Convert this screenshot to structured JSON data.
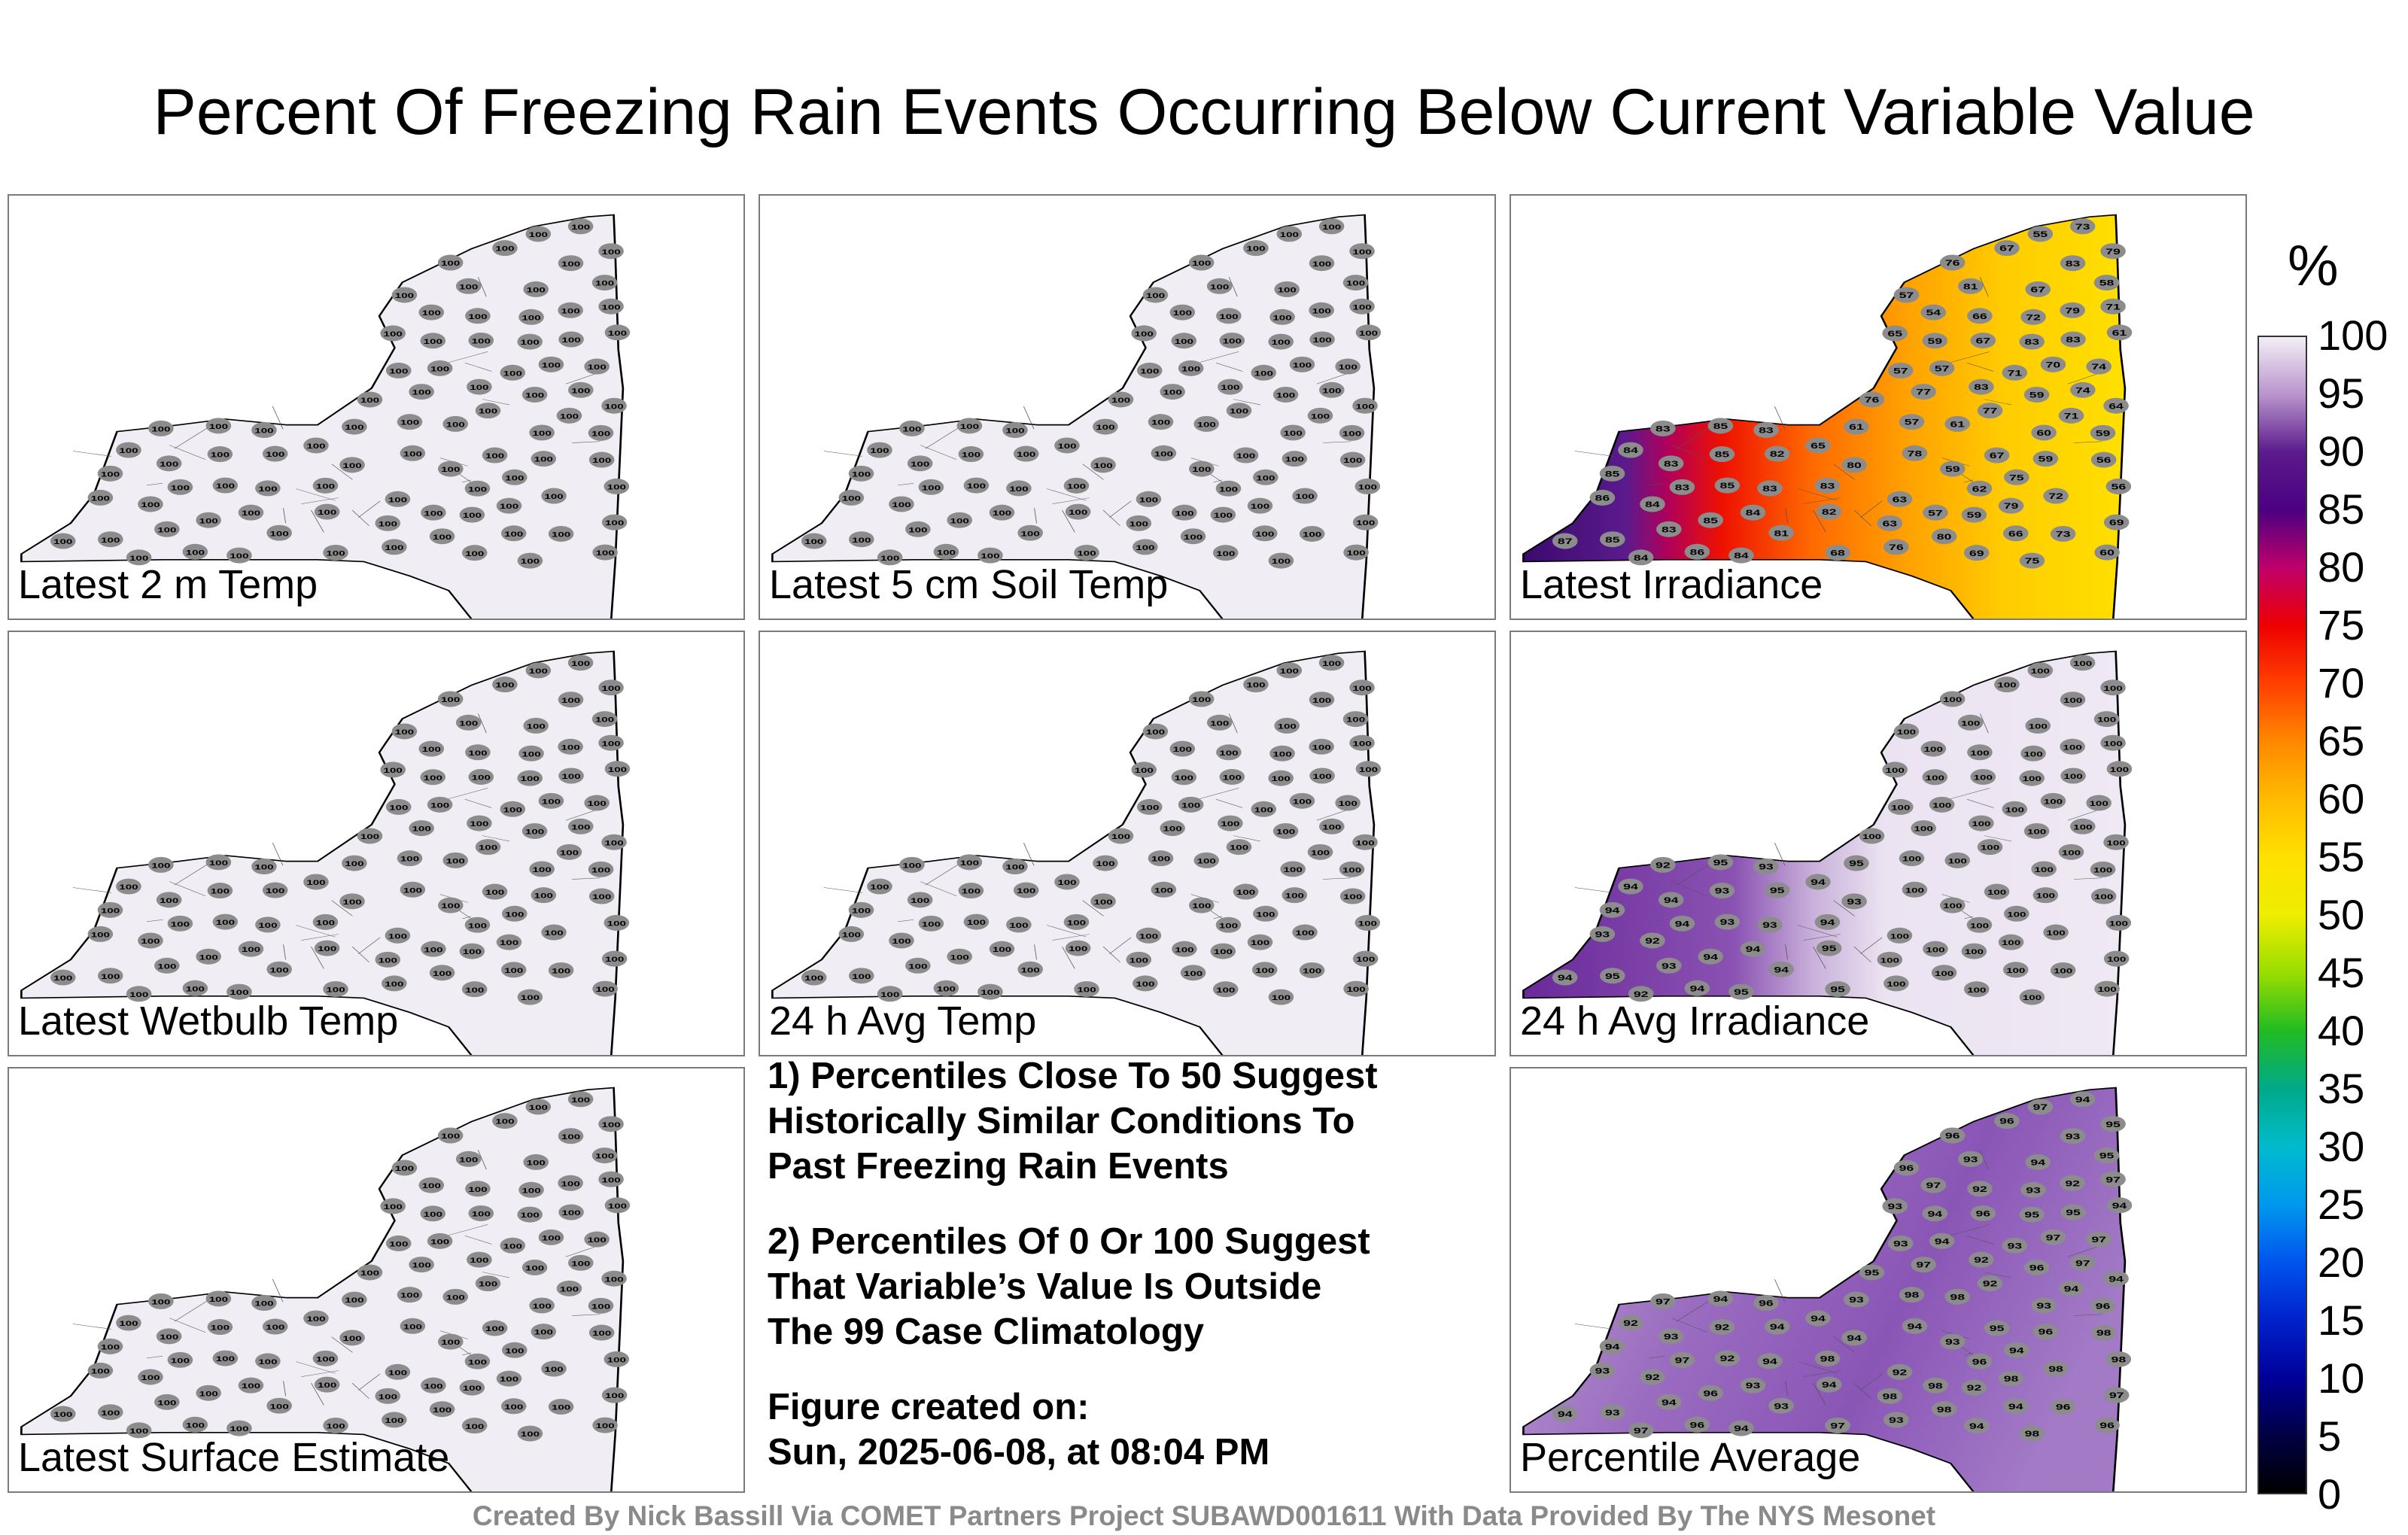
{
  "title": "Percent Of Freezing Rain Events Occurring Below Current Variable Value",
  "panels": [
    {
      "label": "Latest 2 m Temp",
      "mode": "uniform",
      "value": 100
    },
    {
      "label": "Latest 5 cm Soil Temp",
      "mode": "uniform",
      "value": 100
    },
    {
      "label": "Latest Irradiance",
      "mode": "irradiance"
    },
    {
      "label": "Latest Wetbulb Temp",
      "mode": "uniform",
      "value": 100
    },
    {
      "label": "24 h Avg Temp",
      "mode": "uniform",
      "value": 100
    },
    {
      "label": "24 h Avg Irradiance",
      "mode": "avgirr"
    },
    {
      "label": "Latest Surface Estimate",
      "mode": "uniform",
      "value": 100
    },
    {
      "label": "Percentile Average",
      "mode": "avgpct"
    }
  ],
  "notes": [
    "1) Percentiles Close To 50 Suggest\nHistorically Similar Conditions To\nPast Freezing Rain Events",
    "2) Percentiles Of 0 Or 100 Suggest\nThat Variable’s Value Is Outside\nThe 99 Case Climatology",
    "Figure created on:\nSun, 2025-06-08, at 08:04 PM"
  ],
  "colorbar": {
    "unit": "%",
    "ticks": [
      "100",
      "95",
      "90",
      "85",
      "80",
      "75",
      "70",
      "65",
      "60",
      "55",
      "50",
      "45",
      "40",
      "35",
      "30",
      "25",
      "20",
      "15",
      "10",
      "5",
      "0"
    ],
    "stops": [
      "#f3eef6",
      "#b894cc",
      "#5b1a8c",
      "#4b0082",
      "#c0006a",
      "#ee0000",
      "#ff4000",
      "#ff8800",
      "#ffbb00",
      "#ffe000",
      "#eeee00",
      "#99dd00",
      "#22bb22",
      "#00aa88",
      "#00bbcc",
      "#0099ee",
      "#0055ee",
      "#0022cc",
      "#000099",
      "#000044",
      "#000000"
    ]
  },
  "footer": "Created By Nick Bassill Via COMET Partners Project SUBAWD001611 With Data Provided By The NYS Mesonet"
}
